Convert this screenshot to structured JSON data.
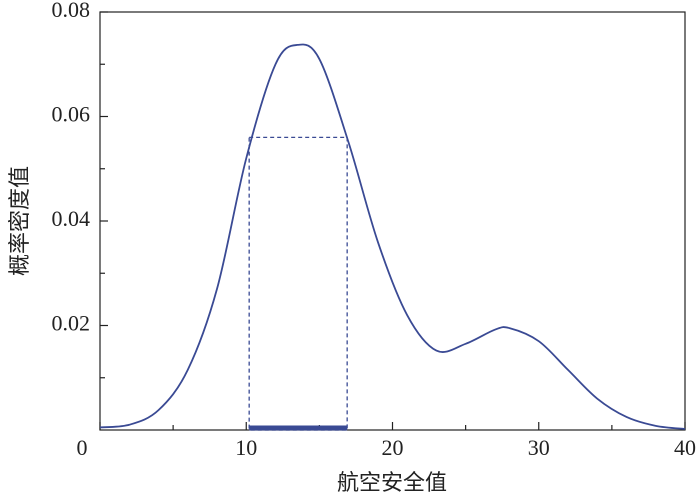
{
  "chart_data": {
    "type": "line",
    "x_label": "航空安全值",
    "y_label": "概率密度值",
    "x": [
      0,
      2,
      4,
      6,
      8,
      10,
      12,
      13.5,
      15,
      17,
      19,
      21,
      23,
      25,
      27,
      28,
      30,
      32,
      34,
      36,
      38,
      40
    ],
    "series": [
      {
        "color": "#3a4a94",
        "values": [
          0.0005,
          0.001,
          0.0038,
          0.0115,
          0.027,
          0.052,
          0.07,
          0.0737,
          0.071,
          0.055,
          0.036,
          0.022,
          0.0152,
          0.0165,
          0.0192,
          0.0195,
          0.017,
          0.0115,
          0.006,
          0.0025,
          0.0008,
          0.0002
        ]
      }
    ],
    "interval": {
      "x": [
        10.2,
        16.9
      ],
      "y": 0.056,
      "color": "#3a4a94"
    },
    "xlim": [
      0,
      40
    ],
    "ylim": [
      0,
      0.08
    ],
    "xticks": [
      0,
      10,
      20,
      30,
      40
    ],
    "xminorticks": [
      5,
      15,
      25,
      35
    ],
    "yticks": [
      0.02,
      0.04,
      0.06,
      0.08
    ],
    "yminorticks": [
      0.01,
      0.03,
      0.05,
      0.07
    ]
  }
}
